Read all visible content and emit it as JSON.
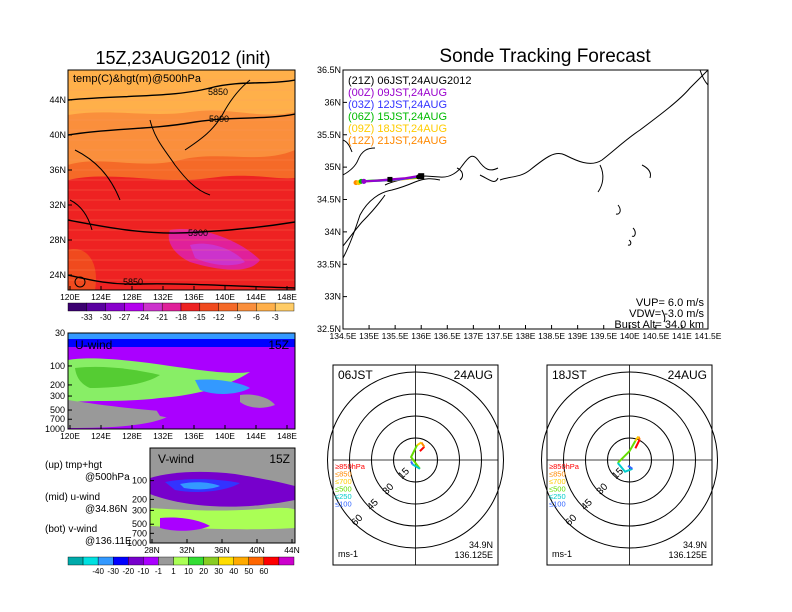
{
  "colors": {
    "frame": "#000000",
    "temp_fill_palette": [
      "#5a00a0",
      "#8800cc",
      "#b400ee",
      "#cc33cc",
      "#e0209a",
      "#ee2222",
      "#f04a1e",
      "#f56a28",
      "#fa8f3c",
      "#ffb04a",
      "#ffcc66"
    ],
    "wind_palette": [
      "#00aaaa",
      "#00e0e0",
      "#3399ff",
      "#0000ff",
      "#7700cc",
      "#aa00ff",
      "#999999",
      "#aaff55",
      "#33dd33",
      "#88cc22",
      "#ffdd00",
      "#ffaa00",
      "#ff6600",
      "#ff0000",
      "#cc00cc"
    ],
    "track_00Z": "#9900cc",
    "track_03Z": "#3333ff",
    "track_06Z": "#00bb00",
    "track_09Z": "#ffcc00",
    "track_12Z": "#ff8800",
    "track_21Z": "#000000"
  },
  "left_top": {
    "title": "15Z,23AUG2012 (init)",
    "label": "temp(C)&hgt(m)@500hPa",
    "contour_labels": [
      "5850",
      "5900",
      "5900",
      "5850"
    ],
    "lat_ticks": [
      "44N",
      "40N",
      "36N",
      "32N",
      "28N",
      "24N"
    ],
    "lon_ticks": [
      "120E",
      "124E",
      "128E",
      "132E",
      "136E",
      "140E",
      "144E",
      "148E"
    ],
    "colorbar_labels": [
      "-33",
      "-30",
      "-27",
      "-24",
      "-21",
      "-18",
      "-15",
      "-12",
      "-9",
      "-6",
      "-3"
    ]
  },
  "left_mid": {
    "label": "U-wind",
    "time": "15Z",
    "p_ticks": [
      "30",
      "100",
      "200",
      "300",
      "500",
      "700",
      "1000"
    ],
    "lon_ticks": [
      "120E",
      "124E",
      "128E",
      "132E",
      "136E",
      "140E",
      "144E",
      "148E"
    ]
  },
  "left_bot": {
    "label": "V-wind",
    "time": "15Z",
    "p_ticks": [
      "100",
      "200",
      "300",
      "500",
      "700",
      "1000"
    ],
    "lat_ticks": [
      "28N",
      "32N",
      "36N",
      "40N",
      "44N"
    ],
    "colorbar_labels": [
      "-40",
      "-30",
      "-20",
      "-10",
      "-1",
      "1",
      "10",
      "20",
      "30",
      "40",
      "50",
      "60"
    ]
  },
  "legend_text": {
    "up1": "(up) tmp+hgt",
    "up2": "@500hPa",
    "mid1": "(mid) u-wind",
    "mid2": "@34.86N",
    "bot1": "(bot) v-wind",
    "bot2": "@136.11E"
  },
  "main": {
    "title": "Sonde Tracking Forecast",
    "launch_line": "(21Z)  06JST,24AUG2012",
    "legend": [
      {
        "label": "(00Z)  09JST,24AUG",
        "color": "#9900cc"
      },
      {
        "label": "(03Z)  12JST,24AUG",
        "color": "#3333ff"
      },
      {
        "label": "(06Z)  15JST,24AUG",
        "color": "#00bb00"
      },
      {
        "label": "(09Z)  18JST,24AUG",
        "color": "#ffcc00"
      },
      {
        "label": "(12Z)  21JST,24AUG",
        "color": "#ff8800"
      }
    ],
    "lat_ticks": [
      "36.5N",
      "36N",
      "35.5N",
      "35N",
      "34.5N",
      "34N",
      "33.5N",
      "33N",
      "32.5N"
    ],
    "lon_ticks": [
      "134.5E",
      "135E",
      "135.5E",
      "136E",
      "136.5E",
      "137E",
      "137.5E",
      "138E",
      "138.5E",
      "139E",
      "139.5E",
      "140E",
      "140.5E",
      "141E",
      "141.5E"
    ],
    "vup": "VUP=  6.0  m/s",
    "vdw": "VDW=  -3.0  m/s",
    "burst": "Burst Alt=  34.0  km"
  },
  "hodo_left": {
    "time": "06JST",
    "date": "24AUG",
    "ring_labels": [
      "15",
      "30",
      "45",
      "60"
    ],
    "unit": "ms-1",
    "lat": "34.9N",
    "lon": "136.125E",
    "levels": [
      {
        "label": "≥850hPa",
        "color": "#ff0000"
      },
      {
        "label": "≤850",
        "color": "#ff8800"
      },
      {
        "label": "≤700",
        "color": "#ffcc00"
      },
      {
        "label": "≤500",
        "color": "#66dd00"
      },
      {
        "label": "≤250",
        "color": "#00cccc"
      },
      {
        "label": "≤100",
        "color": "#3366ff"
      }
    ]
  },
  "hodo_right": {
    "time": "18JST",
    "date": "24AUG",
    "ring_labels": [
      "15",
      "30",
      "45",
      "60"
    ],
    "unit": "ms-1",
    "lat": "34.9N",
    "lon": "136.125E",
    "levels": [
      {
        "label": "≥850hPa",
        "color": "#ff0000"
      },
      {
        "label": "≤850",
        "color": "#ff8800"
      },
      {
        "label": "≤700",
        "color": "#ffcc00"
      },
      {
        "label": "≤500",
        "color": "#66dd00"
      },
      {
        "label": "≤250",
        "color": "#00cccc"
      },
      {
        "label": "≤100",
        "color": "#3366ff"
      }
    ]
  },
  "chart_data": [
    {
      "type": "heatmap",
      "title": "15Z,23AUG2012 (init)",
      "subtitle": "temp(C)&hgt(m)@500hPa",
      "x_ticks": [
        "120E",
        "124E",
        "128E",
        "132E",
        "136E",
        "140E",
        "144E",
        "148E"
      ],
      "y_ticks": [
        "24N",
        "28N",
        "32N",
        "36N",
        "40N",
        "44N"
      ],
      "colorbar": [
        -33,
        -30,
        -27,
        -24,
        -21,
        -18,
        -15,
        -12,
        -9,
        -6,
        -3
      ],
      "contour_labels": [
        5850,
        5900,
        5900,
        5850
      ]
    },
    {
      "type": "heatmap",
      "title": "U-wind",
      "y_ticks": [
        30,
        100,
        200,
        300,
        500,
        700,
        1000
      ],
      "x_ticks": [
        "120E",
        "124E",
        "128E",
        "132E",
        "136E",
        "140E",
        "144E",
        "148E"
      ]
    },
    {
      "type": "heatmap",
      "title": "V-wind",
      "y_ticks": [
        100,
        200,
        300,
        500,
        700,
        1000
      ],
      "x_ticks": [
        "28N",
        "32N",
        "36N",
        "40N",
        "44N"
      ],
      "colorbar": [
        -40,
        -30,
        -20,
        -10,
        -1,
        1,
        10,
        20,
        30,
        40,
        50,
        60
      ]
    },
    {
      "type": "line",
      "title": "Sonde Tracking Forecast",
      "xlim": [
        134.5,
        141.5
      ],
      "ylim": [
        32.5,
        36.5
      ],
      "series": [
        {
          "name": "(21Z)  06JST,24AUG2012",
          "x": [
            136.0,
            135.95
          ],
          "y": [
            34.87,
            34.85
          ]
        },
        {
          "name": "(00Z)  09JST,24AUG",
          "x": [
            136.0,
            135.7,
            135.4,
            135.1,
            134.9
          ],
          "y": [
            34.87,
            34.83,
            34.81,
            34.79,
            34.78
          ]
        },
        {
          "name": "(03Z)  12JST,24AUG",
          "x": [
            136.0,
            135.6,
            135.2,
            134.9
          ],
          "y": [
            34.86,
            34.81,
            34.79,
            34.78
          ]
        },
        {
          "name": "(06Z)  15JST,24AUG",
          "x": [
            136.0,
            135.5,
            135.0,
            134.85
          ],
          "y": [
            34.85,
            34.81,
            34.79,
            34.78
          ]
        },
        {
          "name": "(09Z)  18JST,24AUG",
          "x": [
            136.0,
            135.5,
            134.95,
            134.8
          ],
          "y": [
            34.84,
            34.8,
            34.78,
            34.76
          ]
        },
        {
          "name": "(12Z)  21JST,24AUG",
          "x": [
            136.0,
            135.4,
            134.9,
            134.75
          ],
          "y": [
            34.84,
            34.8,
            34.78,
            34.76
          ]
        }
      ]
    },
    {
      "type": "line",
      "title": "06JST 24AUG",
      "ring_labels": [
        15,
        30,
        45,
        60
      ],
      "series": [
        {
          "name": "≥850hPa",
          "x": [
            3,
            6
          ],
          "y": [
            6,
            9
          ]
        },
        {
          "name": "≤850",
          "x": [
            6,
            4
          ],
          "y": [
            9,
            12
          ]
        },
        {
          "name": "≤700",
          "x": [
            4,
            1
          ],
          "y": [
            12,
            10
          ]
        },
        {
          "name": "≤500",
          "x": [
            1,
            -3,
            3
          ],
          "y": [
            10,
            2,
            -6
          ]
        },
        {
          "name": "≤250",
          "x": [
            3,
            -2
          ],
          "y": [
            -6,
            -3
          ]
        },
        {
          "name": "≤100",
          "x": [
            -2,
            -3
          ],
          "y": [
            -3,
            -1
          ]
        }
      ]
    },
    {
      "type": "line",
      "title": "18JST 24AUG",
      "ring_labels": [
        15,
        30,
        45,
        60
      ],
      "series": [
        {
          "name": "≥850hPa",
          "x": [
            4,
            7
          ],
          "y": [
            8,
            14
          ]
        },
        {
          "name": "≤850",
          "x": [
            7,
            6
          ],
          "y": [
            14,
            16
          ]
        },
        {
          "name": "≤700",
          "x": [
            6,
            4
          ],
          "y": [
            16,
            13
          ]
        },
        {
          "name": "≤500",
          "x": [
            4,
            0,
            -8
          ],
          "y": [
            13,
            6,
            -2
          ]
        },
        {
          "name": "≤250",
          "x": [
            -8,
            -3,
            2
          ],
          "y": [
            -2,
            -8,
            -6
          ]
        },
        {
          "name": "≤100",
          "x": [
            2,
            -1
          ],
          "y": [
            -6,
            -4
          ]
        }
      ]
    }
  ]
}
